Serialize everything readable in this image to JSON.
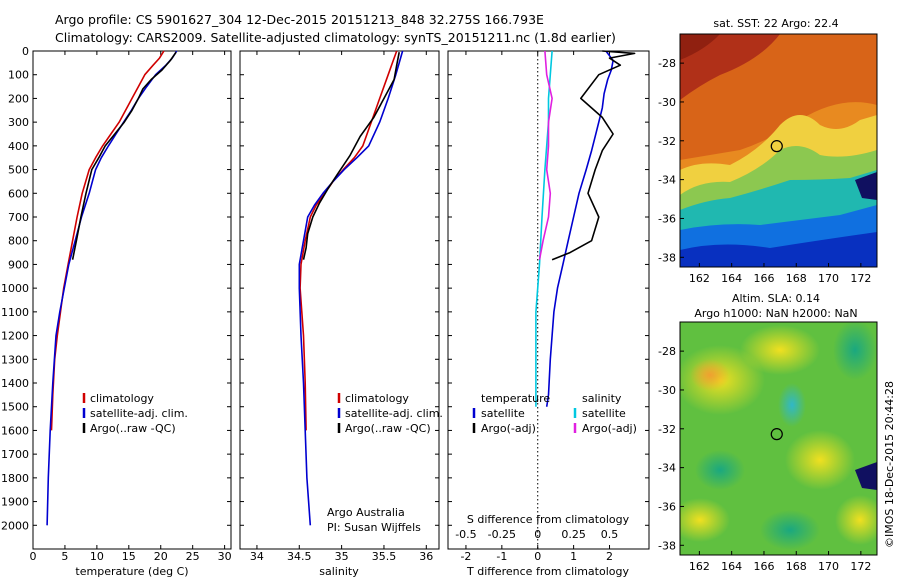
{
  "header": {
    "line1": "Argo profile: CS 5901627_304 12-Dec-2015 20151213_848 32.275S 166.793E",
    "line2": "Climatology: CARS2009. Satellite-adjusted climatology: synTS_20151211.nc (1.8d earlier)"
  },
  "side_text": "©IMOS 18-Dec-2015 20:44:28",
  "chart_data": [
    {
      "type": "line",
      "id": "temperature",
      "xlabel": "temperature (deg C)",
      "ylabel": "",
      "xlim": [
        0,
        31
      ],
      "ylim": [
        2100,
        0
      ],
      "xticks": [
        0,
        5,
        10,
        15,
        20,
        25,
        30
      ],
      "yticks": [
        0,
        100,
        200,
        300,
        400,
        500,
        600,
        700,
        800,
        900,
        1000,
        1100,
        1200,
        1300,
        1400,
        1500,
        1600,
        1700,
        1800,
        1900,
        2000
      ],
      "legend": [
        "climatology",
        "satellite-adj. clim.",
        "Argo(..raw -QC)"
      ],
      "series": [
        {
          "name": "climatology",
          "color": "#d00000",
          "x": [
            20.5,
            19.8,
            18.8,
            17.5,
            16.5,
            15.5,
            14.5,
            13.5,
            12.2,
            10.9,
            9.8,
            8.8,
            7.7,
            6.9,
            6.2,
            5.5,
            4.8,
            4.3,
            3.8,
            3.4,
            3.1,
            2.9
          ],
          "y": [
            0,
            30,
            60,
            100,
            150,
            200,
            250,
            300,
            350,
            400,
            450,
            500,
            600,
            700,
            800,
            900,
            1000,
            1100,
            1200,
            1300,
            1450,
            1600
          ]
        },
        {
          "name": "satellite-adj. clim.",
          "color": "#0000d0",
          "x": [
            22.5,
            21.8,
            20.8,
            19.2,
            17.8,
            16.5,
            15.4,
            14.2,
            13.0,
            11.8,
            10.7,
            9.8,
            8.8,
            7.6,
            6.6,
            5.6,
            4.9,
            4.2,
            3.6,
            3.1,
            2.7,
            2.4,
            2.2
          ],
          "y": [
            0,
            30,
            60,
            100,
            150,
            200,
            250,
            300,
            350,
            400,
            450,
            500,
            600,
            700,
            800,
            900,
            1000,
            1100,
            1200,
            1400,
            1600,
            1800,
            2000
          ]
        },
        {
          "name": "Argo(..raw -QC)",
          "color": "#000000",
          "x": [
            22.4,
            21.5,
            20.2,
            18.5,
            17.2,
            16.5,
            15.5,
            14.3,
            12.8,
            11.3,
            10.3,
            9.2,
            8.3,
            7.5,
            6.8,
            6.2
          ],
          "y": [
            5,
            40,
            80,
            120,
            160,
            200,
            250,
            300,
            350,
            400,
            450,
            500,
            600,
            700,
            800,
            880
          ]
        }
      ]
    },
    {
      "type": "line",
      "id": "salinity",
      "xlabel": "salinity",
      "ylabel": "",
      "xlim": [
        33.8,
        36.15
      ],
      "ylim": [
        2100,
        0
      ],
      "xticks": [
        34,
        34.5,
        35,
        35.5,
        36
      ],
      "legend": [
        "climatology",
        "satellite-adj. clim.",
        "Argo(..raw -QC)"
      ],
      "annotation": [
        "Argo Australia",
        "PI: Susan Wijffels"
      ],
      "series": [
        {
          "name": "climatology",
          "color": "#d00000",
          "x": [
            35.65,
            35.6,
            35.55,
            35.45,
            35.35,
            35.25,
            35.15,
            35.02,
            34.9,
            34.8,
            34.7,
            34.63,
            34.57,
            34.52,
            34.51,
            34.53,
            34.55,
            34.57,
            34.58
          ],
          "y": [
            0,
            50,
            100,
            200,
            300,
            400,
            450,
            500,
            550,
            600,
            650,
            700,
            800,
            900,
            1000,
            1100,
            1200,
            1400,
            1600
          ]
        },
        {
          "name": "satellite-adj. clim.",
          "color": "#0000d0",
          "x": [
            35.72,
            35.68,
            35.64,
            35.55,
            35.45,
            35.32,
            35.18,
            35.03,
            34.9,
            34.78,
            34.68,
            34.6,
            34.55,
            34.5,
            34.5,
            34.52,
            34.55,
            34.57,
            34.59,
            34.61,
            34.63
          ],
          "y": [
            0,
            50,
            100,
            200,
            300,
            400,
            450,
            500,
            550,
            600,
            650,
            700,
            800,
            900,
            1000,
            1200,
            1400,
            1600,
            1800,
            1900,
            2000
          ]
        },
        {
          "name": "Argo(..raw -QC)",
          "color": "#000000",
          "x": [
            35.68,
            35.65,
            35.62,
            35.5,
            35.38,
            35.22,
            35.1,
            34.95,
            34.84,
            34.74,
            34.66,
            34.6,
            34.58,
            34.55
          ],
          "y": [
            5,
            60,
            120,
            200,
            280,
            360,
            440,
            520,
            580,
            640,
            700,
            770,
            830,
            880
          ]
        }
      ]
    },
    {
      "type": "line",
      "id": "difference",
      "xlabel": "T difference from climatology",
      "title_bottom": "S difference from climatology",
      "xlim": [
        -2.5,
        3.1
      ],
      "ylim": [
        2100,
        0
      ],
      "xticks": [
        -2,
        -1,
        0,
        1,
        2
      ],
      "sticks": [
        -0.5,
        -0.25,
        0,
        0.25,
        0.5
      ],
      "sticklabels": [
        "-0.5",
        "-0.25",
        "0",
        "0.25",
        "0.5"
      ],
      "legend_left_title": "temperature",
      "legend_right_title": "salinity",
      "legend": [
        "satellite",
        "Argo(-adj)",
        "satellite",
        "Argo(-adj)"
      ],
      "series": [
        {
          "name": "satellite",
          "color": "#0000d0",
          "x": [
            1.9,
            2.0,
            2.1,
            2.05,
            1.95,
            1.85,
            1.8,
            1.7,
            1.6,
            1.5,
            1.35,
            1.15,
            1.0,
            0.85,
            0.7,
            0.55,
            0.45,
            0.4,
            0.35,
            0.3,
            0.25
          ],
          "y": [
            0,
            20,
            40,
            80,
            120,
            180,
            240,
            300,
            360,
            420,
            500,
            600,
            700,
            800,
            900,
            1000,
            1100,
            1200,
            1300,
            1450,
            1500
          ]
        },
        {
          "name": "Argo(-adj)",
          "color": "#000000",
          "x": [
            1.8,
            2.7,
            2.0,
            2.3,
            1.7,
            1.2,
            1.8,
            2.1,
            1.8,
            1.6,
            1.4,
            1.7,
            1.5,
            0.9,
            0.4
          ],
          "y": [
            0,
            10,
            30,
            60,
            100,
            200,
            280,
            350,
            420,
            500,
            600,
            700,
            800,
            850,
            880
          ]
        },
        {
          "name": "satellite",
          "color": "#00c8e0",
          "x": [
            0.4,
            0.35,
            0.3,
            0.3,
            0.25,
            0.2,
            0.12,
            0.05,
            -0.05,
            -0.05,
            -0.05
          ],
          "y": [
            0,
            100,
            200,
            300,
            400,
            500,
            700,
            900,
            1100,
            1300,
            1500
          ]
        },
        {
          "name": "Argo(-adj)",
          "color": "#e020e0",
          "x": [
            0.2,
            0.25,
            0.4,
            0.3,
            0.3,
            0.25,
            0.35,
            0.3,
            0.15,
            0.05
          ],
          "y": [
            0,
            100,
            200,
            300,
            400,
            500,
            600,
            700,
            800,
            880
          ]
        }
      ]
    },
    {
      "type": "heatmap",
      "id": "sst",
      "title": "sat. SST: 22 Argo: 22.4",
      "xlim": [
        160.8,
        173
      ],
      "ylim": [
        -38.5,
        -26.5
      ],
      "xticks": [
        162,
        164,
        166,
        168,
        170,
        172
      ],
      "yticks": [
        -28,
        -30,
        -32,
        -34,
        -36,
        -38
      ],
      "marker": {
        "lon": 166.793,
        "lat": -32.275
      }
    },
    {
      "type": "heatmap",
      "id": "sla",
      "title": "Altim. SLA: 0.14",
      "subtitle": "Argo h1000: NaN h2000: NaN",
      "xlim": [
        160.8,
        173
      ],
      "ylim": [
        -38.5,
        -26.5
      ],
      "xticks": [
        162,
        164,
        166,
        168,
        170,
        172
      ],
      "yticks": [
        -28,
        -30,
        -32,
        -34,
        -36,
        -38
      ],
      "marker": {
        "lon": 166.793,
        "lat": -32.275
      }
    }
  ]
}
